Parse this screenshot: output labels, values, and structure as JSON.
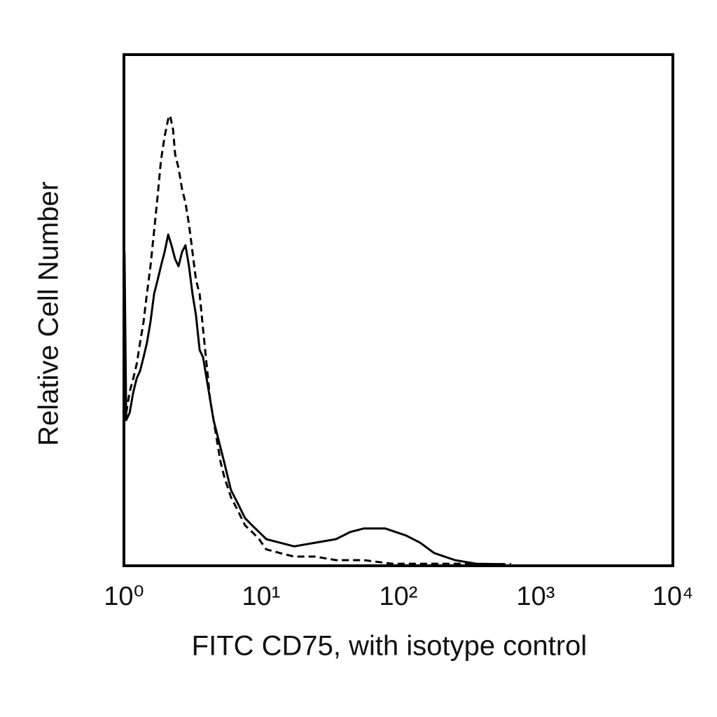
{
  "chart_data": {
    "type": "line",
    "xlabel": "FITC CD75, with isotype control",
    "ylabel": "Relative Cell Number",
    "xscale": "log",
    "xlim": [
      1,
      10000
    ],
    "ylim": [
      0,
      100
    ],
    "xticks": [
      {
        "value": 1,
        "label": "10⁰"
      },
      {
        "value": 10,
        "label": "10¹"
      },
      {
        "value": 100,
        "label": "10²"
      },
      {
        "value": 1000,
        "label": "10³"
      },
      {
        "value": 10000,
        "label": "10⁴"
      }
    ],
    "grid": false,
    "series": [
      {
        "color": "#000000",
        "dashed": false,
        "x": [
          1.01,
          1.04,
          1.1,
          1.17,
          1.24,
          1.31,
          1.39,
          1.47,
          1.56,
          1.66,
          1.76,
          1.86,
          1.98,
          2.1,
          2.22,
          2.36,
          2.5,
          2.65,
          2.81,
          2.98,
          3.16,
          3.35,
          3.56,
          3.77,
          4.0,
          4.24,
          4.5,
          4.77,
          5.37,
          6.03,
          6.79,
          7.63,
          8.59,
          9.65,
          10.9,
          13.7,
          17.4,
          24.7,
          35.1,
          44.5,
          56.2,
          80.0,
          114,
          144,
          182,
          259,
          368,
          589
        ],
        "values": [
          61.4,
          28.5,
          29.9,
          34.0,
          36.7,
          38.1,
          40.8,
          43.6,
          47.7,
          53.2,
          55.9,
          58.6,
          61.4,
          64.8,
          62.7,
          60.0,
          58.6,
          61.4,
          62.7,
          58.6,
          53.2,
          49.0,
          42.2,
          40.8,
          36.7,
          32.6,
          28.5,
          25.8,
          20.3,
          14.8,
          12.1,
          9.3,
          7.9,
          6.6,
          5.2,
          4.5,
          3.8,
          4.5,
          5.2,
          6.6,
          7.3,
          7.3,
          5.9,
          4.5,
          2.5,
          1.1,
          0.4,
          0.3
        ]
      },
      {
        "color": "#000000",
        "dashed": true,
        "x": [
          1.04,
          1.1,
          1.17,
          1.24,
          1.31,
          1.39,
          1.47,
          1.56,
          1.66,
          1.76,
          1.86,
          1.98,
          2.1,
          2.17,
          2.28,
          2.36,
          2.5,
          2.65,
          2.81,
          2.98,
          3.16,
          3.35,
          3.56,
          3.77,
          4.0,
          4.24,
          4.5,
          4.77,
          5.06,
          5.37,
          6.03,
          6.79,
          7.63,
          8.59,
          9.65,
          10.9,
          13.7,
          17.4,
          24.7,
          35.1,
          56.2,
          90.0,
          144,
          259,
          466,
          663
        ],
        "values": [
          29.9,
          34.0,
          36.7,
          39.5,
          43.6,
          47.7,
          53.2,
          58.6,
          65.5,
          72.3,
          79.2,
          84.0,
          87.4,
          88.1,
          85.3,
          80.5,
          77.8,
          73.7,
          71.0,
          66.8,
          61.4,
          55.9,
          53.2,
          46.3,
          39.5,
          32.6,
          28.5,
          24.4,
          20.3,
          17.5,
          13.4,
          10.7,
          7.9,
          6.6,
          5.2,
          3.2,
          2.5,
          1.8,
          1.8,
          1.1,
          1.1,
          0.4,
          0.4,
          0.4,
          0.3,
          0.3
        ]
      }
    ]
  }
}
